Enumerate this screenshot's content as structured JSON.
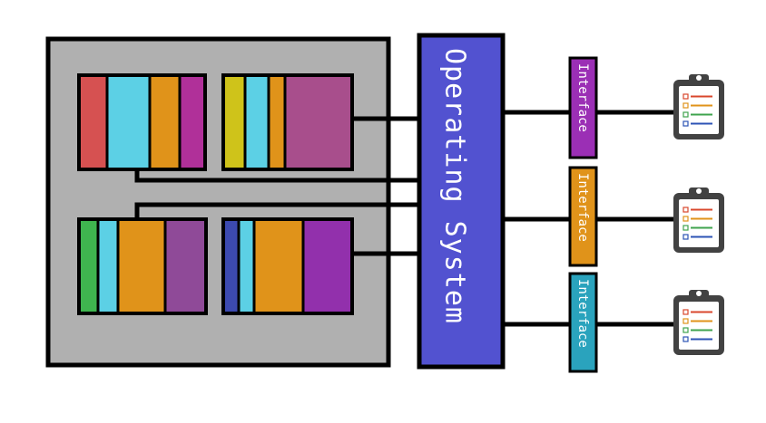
{
  "os": {
    "label": "Operating System",
    "color": "#5252d0"
  },
  "hardware": {
    "background": "#b0b0b0"
  },
  "interfaces": [
    {
      "label": "Interface",
      "color": "#9b2fb5"
    },
    {
      "label": "Interface",
      "color": "#e0931a"
    },
    {
      "label": "Interface",
      "color": "#2aa3bd"
    }
  ],
  "modules": [
    {
      "segments": [
        "#d65151",
        "#5cd0e5",
        "#e0931a",
        "#b03099"
      ]
    },
    {
      "segments": [
        "#cfc31a",
        "#5cd0e5",
        "#e0931a",
        "#a84e8c"
      ]
    },
    {
      "segments": [
        "#3fb54f",
        "#5cd0e5",
        "#e0931a",
        "#8f4a98"
      ]
    },
    {
      "segments": [
        "#3c4ab0",
        "#5cd0e5",
        "#e0931a",
        "#9230ac"
      ]
    }
  ],
  "clipboard": {
    "icon": "clipboard-checklist-icon",
    "line_colors": [
      "#d9472c",
      "#e0931a",
      "#3fa34d",
      "#2c53b5"
    ]
  }
}
